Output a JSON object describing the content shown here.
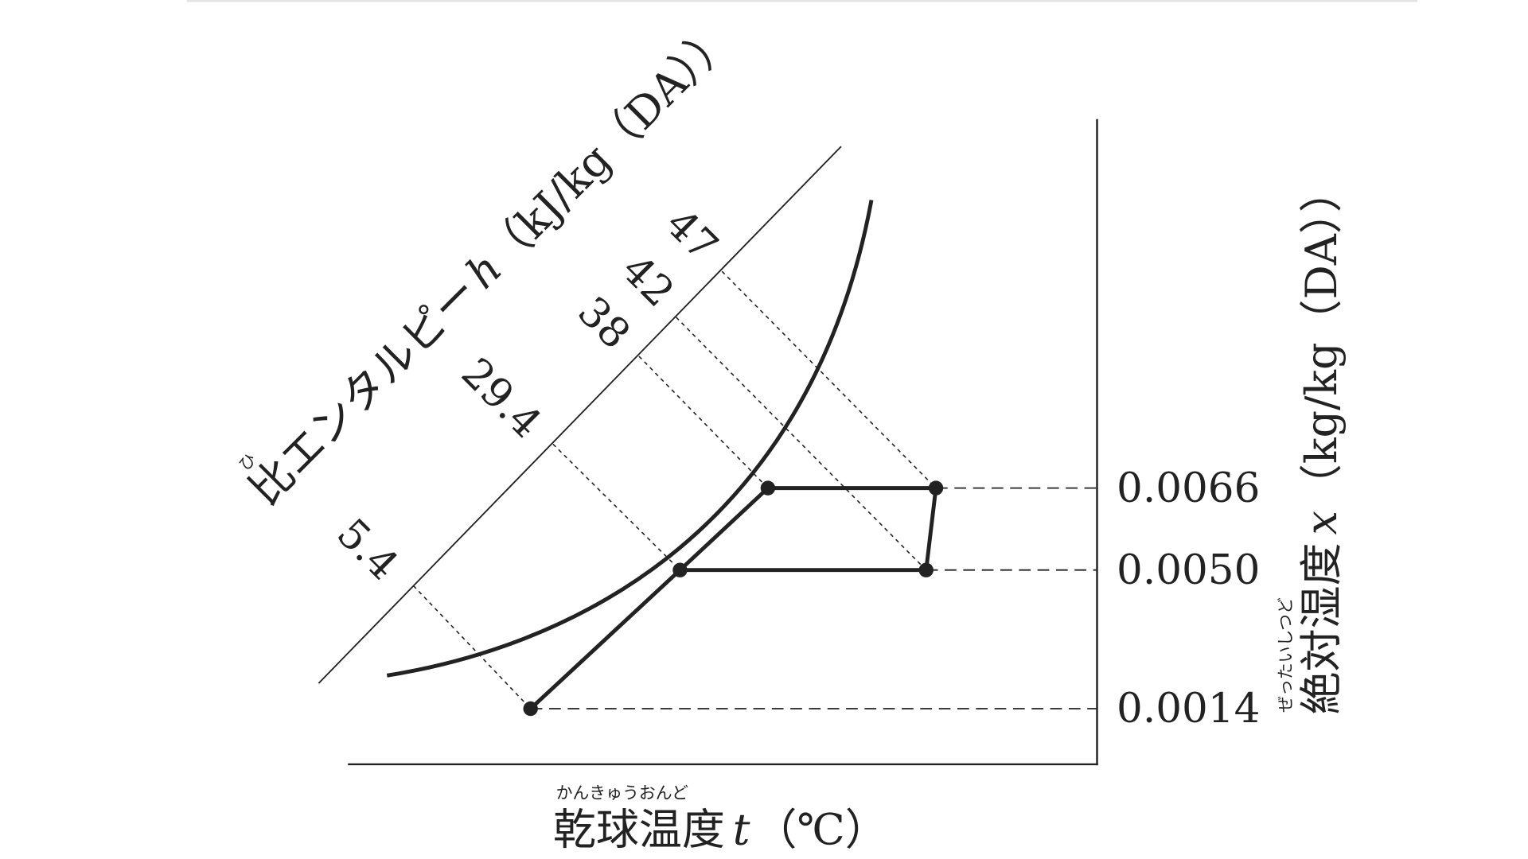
{
  "enthalpy_axis": {
    "ruby": "ひ",
    "name": "比エンタルピー",
    "symbol": "h",
    "unit": "（kJ/kg（DA））",
    "values": [
      "5.4",
      "29.4",
      "38",
      "42",
      "47"
    ]
  },
  "humidity_axis": {
    "ruby": "ぜったいしつど",
    "name": "絶対湿度",
    "symbol": "x",
    "unit": "（kg/kg（DA））",
    "values": [
      "0.0066",
      "0.0050",
      "0.0014"
    ]
  },
  "temperature_axis": {
    "ruby": "かんきゅうおんど",
    "name": "乾球温度",
    "symbol": "t",
    "unit": "（℃）"
  }
}
